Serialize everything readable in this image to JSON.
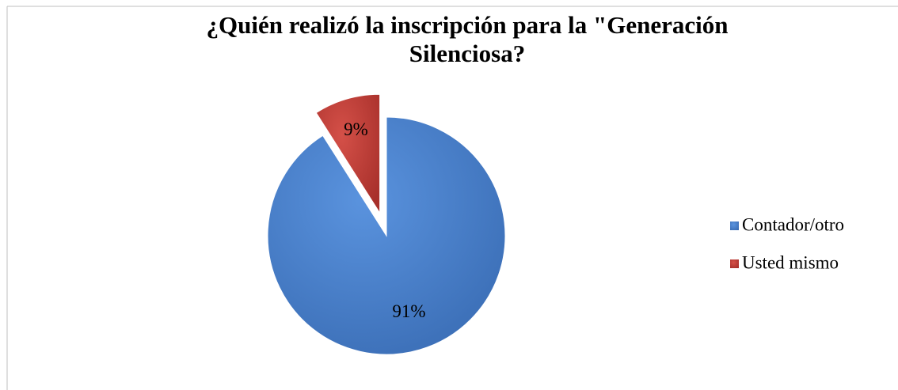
{
  "chart_data": {
    "type": "pie",
    "title": "¿Quién realizó la inscripción para la \"Generación Silenciosa?",
    "categories": [
      "Contador/otro",
      "Usted mismo"
    ],
    "values": [
      91,
      9
    ],
    "value_labels": [
      "91%",
      "9%"
    ],
    "colors": [
      "#4a80cc",
      "#c0403a"
    ],
    "exploded": [
      false,
      true
    ],
    "legend": "right"
  }
}
